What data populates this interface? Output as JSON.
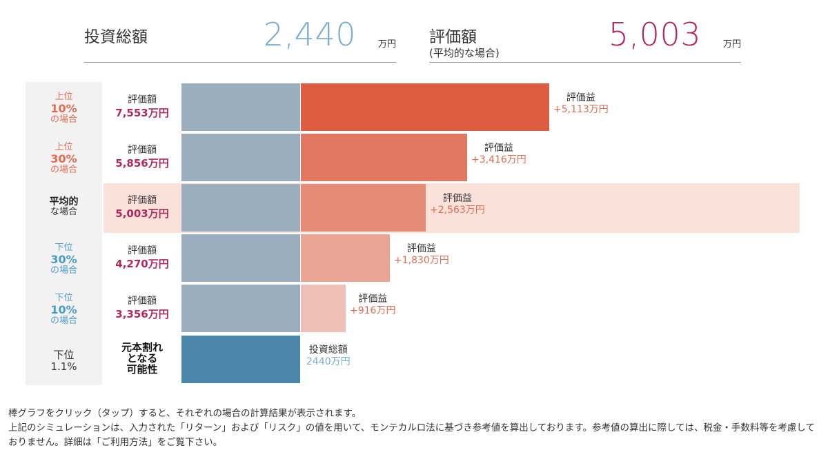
{
  "summary": {
    "invest_label": "投資総額",
    "invest_value": "2,440",
    "invest_unit": "万円",
    "value_label": "評価額",
    "value_sub": "(平均的な場合)",
    "value_value": "5,003",
    "value_unit": "万円"
  },
  "chart_data": {
    "type": "bar",
    "orientation": "horizontal-stacked",
    "categories": [
      "上位10%の場合",
      "上位30%の場合",
      "平均的な場合",
      "下位30%の場合",
      "下位10%の場合",
      "下位1.1%"
    ],
    "series": [
      {
        "name": "投資総額",
        "values": [
          2440,
          2440,
          2440,
          2440,
          2440,
          2440
        ]
      },
      {
        "name": "評価益",
        "values": [
          5113,
          3416,
          2563,
          1830,
          916,
          0
        ]
      }
    ],
    "evaluation_values": [
      7553,
      5856,
      5003,
      4270,
      3356,
      null
    ],
    "unit": "万円",
    "highlighted_category": "平均的な場合",
    "colors": {
      "invest": "#9aaebd",
      "invest_loss": "#4a87aa",
      "gain": [
        "#de5d42",
        "#e27862",
        "#e58b76",
        "#eaa595",
        "#f0bfb5"
      ],
      "highlight_bg": "#fae1d9",
      "value_text": "#b0285e",
      "gain_text": "#e06b51",
      "top_label": "#e06b51",
      "bottom_label": "#4a9cc6"
    }
  },
  "rows": [
    {
      "lab_top": "上位",
      "lab_pct": "10%",
      "lab_bottom": "の場合",
      "val_cap": "評価額",
      "val_num": "7,553万円",
      "bar_cap": "評価益",
      "bar_gain": "+5,113万円"
    },
    {
      "lab_top": "上位",
      "lab_pct": "30%",
      "lab_bottom": "の場合",
      "val_cap": "評価額",
      "val_num": "5,856万円",
      "bar_cap": "評価益",
      "bar_gain": "+3,416万円"
    },
    {
      "lab_top": "平均的",
      "lab_bottom": "な場合",
      "val_cap": "評価額",
      "val_num": "5,003万円",
      "bar_cap": "評価益",
      "bar_gain": "+2,563万円"
    },
    {
      "lab_top": "下位",
      "lab_pct": "30%",
      "lab_bottom": "の場合",
      "val_cap": "評価額",
      "val_num": "4,270万円",
      "bar_cap": "評価益",
      "bar_gain": "+1,830万円"
    },
    {
      "lab_top": "下位",
      "lab_pct": "10%",
      "lab_bottom": "の場合",
      "val_cap": "評価額",
      "val_num": "3,356万円",
      "bar_cap": "評価益",
      "bar_gain": "+916万円"
    },
    {
      "lab_top": "下位",
      "lab_pct": "1.1%",
      "val_line1": "元本割れ",
      "val_line2": "となる",
      "val_line3": "可能性",
      "bar_cap": "投資総額",
      "bar_gain": "2440万円"
    }
  ],
  "notes": {
    "line1": "棒グラフをクリック（タップ）すると、それぞれの場合の計算結果が表示されます。",
    "line2": "上記のシミュレーションは、入力された「リターン」および「リスク」の値を用いて、モンテカルロ法に基づき参考値を算出しております。参考値の算出に際しては、税金・手数料等を考慮しておりません。詳細は「ご利用方法」をご覧下さい。"
  }
}
